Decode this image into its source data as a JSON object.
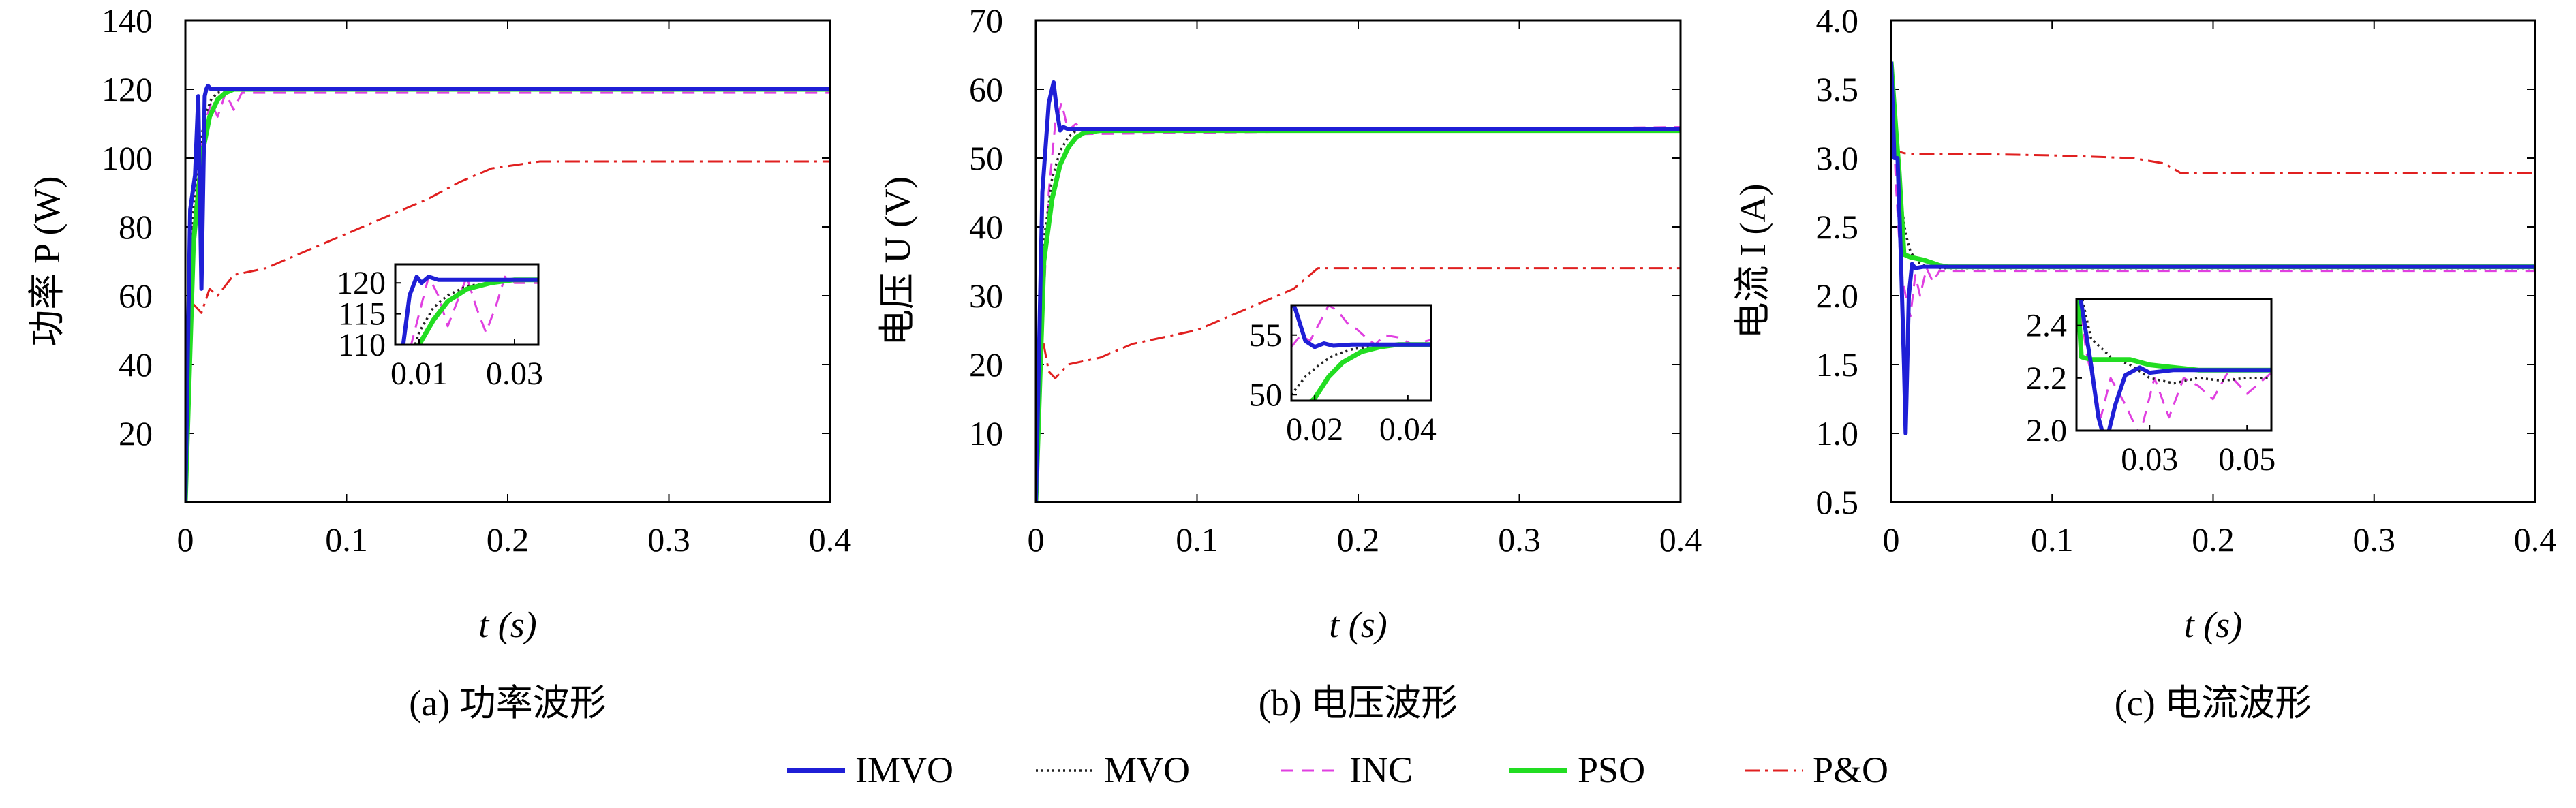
{
  "colors": {
    "IMVO": "#1f1fd6",
    "MVO": "#222222",
    "INC": "#e040e0",
    "PSO": "#22dd22",
    "PandO": "#e02020"
  },
  "legend": [
    {
      "key": "IMVO",
      "label": "IMVO",
      "style": "solid"
    },
    {
      "key": "MVO",
      "label": "MVO",
      "style": "dotted"
    },
    {
      "key": "INC",
      "label": "INC",
      "style": "dashed"
    },
    {
      "key": "PSO",
      "label": "PSO",
      "style": "solid"
    },
    {
      "key": "PandO",
      "label": "P&O",
      "style": "dashdot"
    }
  ],
  "chart_data": [
    {
      "type": "line",
      "caption": "(a) 功率波形",
      "xlabel": "t (s)",
      "ylabel": "功率 P (W)",
      "xlim": [
        0,
        0.4
      ],
      "ylim": [
        0,
        140
      ],
      "xticks": [
        0,
        0.1,
        0.2,
        0.3,
        0.4
      ],
      "xtick_labels": [
        "0",
        "0.1",
        "0.2",
        "0.3",
        "0.4"
      ],
      "yticks": [
        20,
        40,
        60,
        80,
        100,
        120,
        140
      ],
      "ytick_labels": [
        "20",
        "40",
        "60",
        "80",
        "100",
        "120",
        "140"
      ],
      "series": [
        {
          "name": "IMVO",
          "x": [
            0,
            0.003,
            0.006,
            0.008,
            0.01,
            0.012,
            0.013,
            0.014,
            0.016,
            0.02,
            0.03,
            0.4
          ],
          "y": [
            0,
            85,
            95,
            118,
            62,
            118,
            120,
            121,
            120,
            120,
            120,
            120
          ]
        },
        {
          "name": "MVO",
          "x": [
            0,
            0.004,
            0.008,
            0.012,
            0.016,
            0.02,
            0.03,
            0.4
          ],
          "y": [
            0,
            80,
            100,
            112,
            117,
            119,
            120,
            120
          ]
        },
        {
          "name": "INC",
          "x": [
            0,
            0.004,
            0.008,
            0.012,
            0.016,
            0.02,
            0.025,
            0.03,
            0.035,
            0.4
          ],
          "y": [
            0,
            75,
            95,
            110,
            116,
            112,
            119,
            114,
            119,
            119
          ]
        },
        {
          "name": "PSO",
          "x": [
            0,
            0.005,
            0.01,
            0.015,
            0.02,
            0.025,
            0.03,
            0.4
          ],
          "y": [
            0,
            75,
            100,
            112,
            117,
            119,
            120,
            120
          ]
        },
        {
          "name": "P&O",
          "x": [
            0,
            0.004,
            0.01,
            0.015,
            0.02,
            0.03,
            0.05,
            0.07,
            0.09,
            0.11,
            0.13,
            0.15,
            0.17,
            0.19,
            0.22,
            0.3,
            0.4
          ],
          "y": [
            0,
            58,
            55,
            62,
            60,
            66,
            68,
            72,
            76,
            80,
            84,
            88,
            93,
            97,
            99,
            99,
            99
          ]
        }
      ],
      "inset": {
        "xlim": [
          0.005,
          0.035
        ],
        "ylim": [
          110,
          123
        ],
        "xticks": [
          0.01,
          0.03
        ],
        "xtick_labels": [
          "0.01",
          "0.03"
        ],
        "yticks": [
          110,
          115,
          120
        ],
        "ytick_labels": [
          "110",
          "115",
          "120"
        ],
        "series": [
          {
            "name": "IMVO",
            "x": [
              0.005,
              0.008,
              0.0095,
              0.0105,
              0.012,
              0.014,
              0.02,
              0.035
            ],
            "y": [
              100,
              118,
              121,
              120,
              121,
              120.5,
              120.5,
              120.5
            ]
          },
          {
            "name": "MVO",
            "x": [
              0.005,
              0.01,
              0.013,
              0.016,
              0.02,
              0.025,
              0.03,
              0.035
            ],
            "y": [
              100,
              112,
              116,
              118,
              119.5,
              120,
              120.5,
              120.5
            ]
          },
          {
            "name": "INC",
            "x": [
              0.005,
              0.012,
              0.014,
              0.016,
              0.018,
              0.02,
              0.022,
              0.024,
              0.026,
              0.028,
              0.03,
              0.035
            ],
            "y": [
              100,
              121,
              118,
              113,
              117,
              121,
              116,
              112,
              116,
              121,
              120,
              120
            ]
          },
          {
            "name": "PSO",
            "x": [
              0.005,
              0.01,
              0.013,
              0.016,
              0.02,
              0.025,
              0.03,
              0.035
            ],
            "y": [
              100,
              110,
              114,
              117,
              119,
              120,
              120.5,
              120.5
            ]
          }
        ]
      }
    },
    {
      "type": "line",
      "caption": "(b) 电压波形",
      "xlabel": "t (s)",
      "ylabel": "电压 U (V)",
      "xlim": [
        0,
        0.4
      ],
      "ylim": [
        0,
        70
      ],
      "xticks": [
        0,
        0.1,
        0.2,
        0.3,
        0.4
      ],
      "xtick_labels": [
        "0",
        "0.1",
        "0.2",
        "0.3",
        "0.4"
      ],
      "yticks": [
        10,
        20,
        30,
        40,
        50,
        60,
        70
      ],
      "ytick_labels": [
        "10",
        "20",
        "30",
        "40",
        "50",
        "60",
        "70"
      ],
      "series": [
        {
          "name": "IMVO",
          "x": [
            0,
            0.004,
            0.008,
            0.011,
            0.013,
            0.015,
            0.017,
            0.02,
            0.03,
            0.4
          ],
          "y": [
            0,
            45,
            58,
            61,
            57,
            54,
            54.5,
            54.2,
            54.2,
            54.2
          ]
        },
        {
          "name": "MVO",
          "x": [
            0,
            0.005,
            0.01,
            0.015,
            0.02,
            0.025,
            0.03,
            0.4
          ],
          "y": [
            0,
            38,
            47,
            51,
            53,
            54,
            54.3,
            54.3
          ]
        },
        {
          "name": "INC",
          "x": [
            0,
            0.004,
            0.008,
            0.012,
            0.016,
            0.02,
            0.025,
            0.03,
            0.4
          ],
          "y": [
            0,
            25,
            45,
            55,
            58,
            54,
            55,
            53.5,
            54.5
          ]
        },
        {
          "name": "PSO",
          "x": [
            0,
            0.005,
            0.01,
            0.015,
            0.02,
            0.025,
            0.03,
            0.04,
            0.4
          ],
          "y": [
            0,
            35,
            44,
            49,
            51.5,
            53,
            53.7,
            54,
            54
          ]
        },
        {
          "name": "P&O",
          "x": [
            0,
            0.004,
            0.008,
            0.012,
            0.02,
            0.04,
            0.06,
            0.08,
            0.1,
            0.12,
            0.14,
            0.16,
            0.175,
            0.2,
            0.3,
            0.4
          ],
          "y": [
            0,
            24,
            19,
            18,
            20,
            21,
            23,
            24,
            25,
            27,
            29,
            31,
            34,
            34,
            34,
            34
          ]
        }
      ],
      "inset": {
        "xlim": [
          0.015,
          0.045
        ],
        "ylim": [
          49.5,
          57.5
        ],
        "xticks": [
          0.02,
          0.04
        ],
        "xtick_labels": [
          "0.02",
          "0.04"
        ],
        "yticks": [
          50,
          55
        ],
        "ytick_labels": [
          "50",
          "55"
        ],
        "series": [
          {
            "name": "IMVO",
            "x": [
              0.015,
              0.016,
              0.018,
              0.02,
              0.022,
              0.024,
              0.028,
              0.035,
              0.045
            ],
            "y": [
              58,
              57,
              54.5,
              54,
              54.3,
              54.1,
              54.2,
              54.2,
              54.2
            ]
          },
          {
            "name": "MVO",
            "x": [
              0.015,
              0.018,
              0.021,
              0.024,
              0.028,
              0.033,
              0.04,
              0.045
            ],
            "y": [
              50,
              51.5,
              52.5,
              53.3,
              53.8,
              54.1,
              54.2,
              54.2
            ]
          },
          {
            "name": "INC",
            "x": [
              0.015,
              0.017,
              0.019,
              0.021,
              0.023,
              0.025,
              0.027,
              0.029,
              0.031,
              0.033,
              0.035,
              0.038,
              0.041,
              0.045
            ],
            "y": [
              54,
              55,
              54.5,
              56,
              57.5,
              57,
              56,
              55.5,
              54.8,
              54.2,
              55,
              54.8,
              54.2,
              54.6
            ]
          },
          {
            "name": "PSO",
            "x": [
              0.015,
              0.02,
              0.023,
              0.026,
              0.03,
              0.034,
              0.038,
              0.045
            ],
            "y": [
              48,
              49.7,
              51.5,
              52.7,
              53.6,
              54,
              54.2,
              54.2
            ]
          }
        ]
      }
    },
    {
      "type": "line",
      "caption": "(c) 电流波形",
      "xlabel": "t (s)",
      "ylabel": "电流 I (A)",
      "xlim": [
        0,
        0.4
      ],
      "ylim": [
        0.5,
        4.0
      ],
      "xticks": [
        0,
        0.1,
        0.2,
        0.3,
        0.4
      ],
      "xtick_labels": [
        "0",
        "0.1",
        "0.2",
        "0.3",
        "0.4"
      ],
      "yticks": [
        0.5,
        1.0,
        1.5,
        2.0,
        2.5,
        3.0,
        3.5,
        4.0
      ],
      "ytick_labels": [
        "0.5",
        "1.0",
        "1.5",
        "2.0",
        "2.5",
        "3.0",
        "3.5",
        "4.0"
      ],
      "series": [
        {
          "name": "IMVO",
          "x": [
            0,
            0.002,
            0.004,
            0.006,
            0.008,
            0.009,
            0.011,
            0.013,
            0.015,
            0.02,
            0.03,
            0.4
          ],
          "y": [
            3.7,
            3.0,
            3.0,
            2.3,
            1.5,
            1.0,
            2.0,
            2.23,
            2.2,
            2.21,
            2.21,
            2.21
          ]
        },
        {
          "name": "MVO",
          "x": [
            0,
            0.003,
            0.006,
            0.009,
            0.012,
            0.016,
            0.02,
            0.03,
            0.4
          ],
          "y": [
            3.6,
            3.1,
            2.7,
            2.45,
            2.32,
            2.25,
            2.22,
            2.2,
            2.2
          ]
        },
        {
          "name": "INC",
          "x": [
            0,
            0.003,
            0.006,
            0.009,
            0.012,
            0.015,
            0.018,
            0.022,
            0.026,
            0.03,
            0.4
          ],
          "y": [
            3.7,
            2.8,
            2.2,
            2.0,
            1.85,
            2.15,
            2.0,
            2.2,
            2.1,
            2.18,
            2.18
          ]
        },
        {
          "name": "PSO",
          "x": [
            0,
            0.003,
            0.005,
            0.008,
            0.012,
            0.016,
            0.02,
            0.025,
            0.03,
            0.035,
            0.4
          ],
          "y": [
            3.7,
            3.2,
            2.9,
            2.3,
            2.28,
            2.27,
            2.26,
            2.24,
            2.22,
            2.21,
            2.21
          ]
        },
        {
          "name": "P&O",
          "x": [
            0,
            0.004,
            0.01,
            0.05,
            0.1,
            0.15,
            0.17,
            0.18,
            0.2,
            0.3,
            0.4
          ],
          "y": [
            3.05,
            3.05,
            3.03,
            3.03,
            3.02,
            3.0,
            2.96,
            2.89,
            2.89,
            2.89,
            2.89
          ]
        }
      ],
      "inset": {
        "xlim": [
          0.015,
          0.055
        ],
        "ylim": [
          2.0,
          2.5
        ],
        "xticks": [
          0.03,
          0.05
        ],
        "xtick_labels": [
          "0.03",
          "0.05"
        ],
        "yticks": [
          2.0,
          2.2,
          2.4
        ],
        "ytick_labels": [
          "2.0",
          "2.2",
          "2.4"
        ],
        "series": [
          {
            "name": "IMVO",
            "x": [
              0.015,
              0.018,
              0.0195,
              0.021,
              0.023,
              0.025,
              0.028,
              0.03,
              0.035,
              0.055
            ],
            "y": [
              2.6,
              2.25,
              2.05,
              1.95,
              2.1,
              2.21,
              2.24,
              2.22,
              2.23,
              2.23
            ]
          },
          {
            "name": "MVO",
            "x": [
              0.015,
              0.018,
              0.022,
              0.026,
              0.03,
              0.035,
              0.04,
              0.045,
              0.05,
              0.055
            ],
            "y": [
              2.6,
              2.35,
              2.28,
              2.25,
              2.2,
              2.18,
              2.2,
              2.19,
              2.2,
              2.2
            ]
          },
          {
            "name": "INC",
            "x": [
              0.015,
              0.017,
              0.02,
              0.022,
              0.025,
              0.028,
              0.031,
              0.034,
              0.037,
              0.04,
              0.043,
              0.046,
              0.05,
              0.055
            ],
            "y": [
              2.6,
              2.3,
              2.05,
              2.2,
              2.1,
              1.98,
              2.2,
              2.05,
              2.2,
              2.17,
              2.12,
              2.22,
              2.14,
              2.22
            ]
          },
          {
            "name": "PSO",
            "x": [
              0.015,
              0.016,
              0.018,
              0.022,
              0.026,
              0.03,
              0.035,
              0.04,
              0.055
            ],
            "y": [
              2.6,
              2.28,
              2.27,
              2.27,
              2.27,
              2.25,
              2.24,
              2.23,
              2.23
            ]
          }
        ]
      }
    }
  ]
}
